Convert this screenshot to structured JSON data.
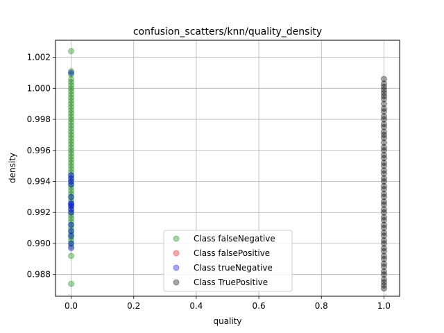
{
  "chart_data": {
    "type": "scatter",
    "title": "confusion_scatters/knn/quality_density",
    "xlabel": "quality",
    "ylabel": "density",
    "xlim": [
      -0.05,
      1.05
    ],
    "ylim": [
      0.9866,
      1.0031
    ],
    "x_ticks": [
      "0.0",
      "0.2",
      "0.4",
      "0.6",
      "0.8",
      "1.0"
    ],
    "y_ticks": [
      "0.988",
      "0.990",
      "0.992",
      "0.994",
      "0.996",
      "0.998",
      "1.000",
      "1.002"
    ],
    "grid": true,
    "legend_position": "lower-center",
    "series": [
      {
        "name": "Class falseNegative",
        "color": "#008000",
        "alpha": 0.35,
        "points": [
          [
            0,
            1.0024
          ],
          [
            0,
            1.0011
          ],
          [
            0,
            1.0009
          ],
          [
            0,
            1.0006
          ],
          [
            0,
            1.0004
          ],
          [
            0,
            1.0002
          ],
          [
            0,
            1.0
          ],
          [
            0,
            0.9998
          ],
          [
            0,
            0.9996
          ],
          [
            0,
            0.9994
          ],
          [
            0,
            0.9992
          ],
          [
            0,
            0.999
          ],
          [
            0,
            0.9988
          ],
          [
            0,
            0.9986
          ],
          [
            0,
            0.9984
          ],
          [
            0,
            0.9982
          ],
          [
            0,
            0.998
          ],
          [
            0,
            0.9978
          ],
          [
            0,
            0.9976
          ],
          [
            0,
            0.9974
          ],
          [
            0,
            0.9972
          ],
          [
            0,
            0.997
          ],
          [
            0,
            0.9968
          ],
          [
            0,
            0.9966
          ],
          [
            0,
            0.9964
          ],
          [
            0,
            0.9962
          ],
          [
            0,
            0.996
          ],
          [
            0,
            0.9958
          ],
          [
            0,
            0.9956
          ],
          [
            0,
            0.9954
          ],
          [
            0,
            0.9952
          ],
          [
            0,
            0.995
          ],
          [
            0,
            0.9948
          ],
          [
            0,
            0.9946
          ],
          [
            0,
            0.9944
          ],
          [
            0,
            0.9942
          ],
          [
            0,
            0.994
          ],
          [
            0,
            0.9938
          ],
          [
            0,
            0.9936
          ],
          [
            0,
            0.9934
          ],
          [
            0,
            0.9932
          ],
          [
            0,
            0.993
          ],
          [
            0,
            0.9928
          ],
          [
            0,
            0.9926
          ],
          [
            0,
            0.9924
          ],
          [
            0,
            0.9922
          ],
          [
            0,
            0.992
          ],
          [
            0,
            0.9918
          ],
          [
            0,
            0.9916
          ],
          [
            0,
            0.9914
          ],
          [
            0,
            0.9912
          ],
          [
            0,
            0.991
          ],
          [
            0,
            0.9908
          ],
          [
            0,
            0.9906
          ],
          [
            0,
            0.9904
          ],
          [
            0,
            0.9902
          ],
          [
            0,
            0.99
          ],
          [
            0,
            0.9898
          ],
          [
            0,
            0.9892
          ],
          [
            0,
            0.9874
          ]
        ]
      },
      {
        "name": "Class falsePositive",
        "color": "#ff0000",
        "alpha": 0.35,
        "points": []
      },
      {
        "name": "Class trueNegative",
        "color": "#0000ff",
        "alpha": 0.35,
        "points": [
          [
            0,
            1.001
          ],
          [
            0,
            0.9944
          ],
          [
            0,
            0.9942
          ],
          [
            0,
            0.994
          ],
          [
            0,
            0.9938
          ],
          [
            0,
            0.993
          ],
          [
            0,
            0.9926
          ],
          [
            0,
            0.9925
          ],
          [
            0,
            0.9924
          ],
          [
            0,
            0.9922
          ],
          [
            0,
            0.992
          ],
          [
            0,
            0.9912
          ],
          [
            0,
            0.9908
          ],
          [
            0,
            0.9905
          ],
          [
            0,
            0.99
          ],
          [
            0,
            0.9897
          ]
        ]
      },
      {
        "name": "Class TruePositive",
        "color": "#000000",
        "alpha": 0.35,
        "points": [
          [
            1,
            1.0006
          ],
          [
            1,
            1.0003
          ],
          [
            1,
            1.0001
          ],
          [
            1,
            0.9999
          ],
          [
            1,
            0.9997
          ],
          [
            1,
            0.9995
          ],
          [
            1,
            0.9993
          ],
          [
            1,
            0.999
          ],
          [
            1,
            0.9987
          ],
          [
            1,
            0.9985
          ],
          [
            1,
            0.9982
          ],
          [
            1,
            0.998
          ],
          [
            1,
            0.9977
          ],
          [
            1,
            0.9975
          ],
          [
            1,
            0.9972
          ],
          [
            1,
            0.997
          ],
          [
            1,
            0.9968
          ],
          [
            1,
            0.9965
          ],
          [
            1,
            0.9962
          ],
          [
            1,
            0.996
          ],
          [
            1,
            0.9957
          ],
          [
            1,
            0.9955
          ],
          [
            1,
            0.9952
          ],
          [
            1,
            0.995
          ],
          [
            1,
            0.9947
          ],
          [
            1,
            0.9945
          ],
          [
            1,
            0.9942
          ],
          [
            1,
            0.994
          ],
          [
            1,
            0.9937
          ],
          [
            1,
            0.9935
          ],
          [
            1,
            0.9932
          ],
          [
            1,
            0.993
          ],
          [
            1,
            0.9927
          ],
          [
            1,
            0.9925
          ],
          [
            1,
            0.9922
          ],
          [
            1,
            0.992
          ],
          [
            1,
            0.9917
          ],
          [
            1,
            0.9915
          ],
          [
            1,
            0.9912
          ],
          [
            1,
            0.991
          ],
          [
            1,
            0.9907
          ],
          [
            1,
            0.9905
          ],
          [
            1,
            0.9902
          ],
          [
            1,
            0.99
          ],
          [
            1,
            0.9897
          ],
          [
            1,
            0.9895
          ],
          [
            1,
            0.9892
          ],
          [
            1,
            0.989
          ],
          [
            1,
            0.9887
          ],
          [
            1,
            0.9885
          ],
          [
            1,
            0.9882
          ],
          [
            1,
            0.988
          ],
          [
            1,
            0.9877
          ],
          [
            1,
            0.9875
          ],
          [
            1,
            0.9873
          ],
          [
            1,
            0.9871
          ]
        ]
      }
    ]
  }
}
